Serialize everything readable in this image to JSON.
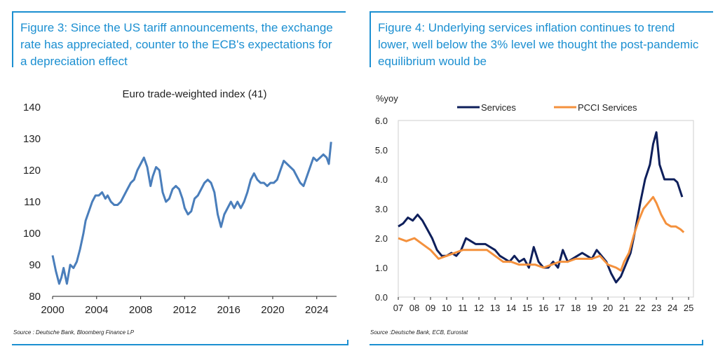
{
  "figures": [
    {
      "title": "Figure 3: Since the US tariff announcements, the exchange rate has appreciated, counter to the ECB's expectations for a depreciation effect",
      "source": "Source : Deutsche Bank, Bloomberg Finance LP"
    },
    {
      "title": "Figure 4: Underlying services inflation continues to trend lower, well below the 3% level we thought the post-pandemic equilibrium would be",
      "source": "Source :Deutsche Bank, ECB, Eurostat"
    }
  ],
  "colors": {
    "accent": "#1b8fd1",
    "series_left": "#4a7ebb",
    "services": "#0e1f5b",
    "pcci": "#f4913d"
  },
  "chart_data": [
    {
      "type": "line",
      "title": "Euro trade-weighted index (41)",
      "xlabel": "",
      "ylabel": "",
      "xlim": [
        2000,
        2025.8
      ],
      "ylim": [
        80,
        140
      ],
      "xticks": [
        2000,
        2004,
        2008,
        2012,
        2016,
        2020,
        2024
      ],
      "xtick_labels": [
        "2000",
        "2004",
        "2008",
        "2012",
        "2016",
        "2020",
        "2024"
      ],
      "yticks": [
        80,
        90,
        100,
        110,
        120,
        130,
        140
      ],
      "ytick_labels": [
        "80",
        "90",
        "100",
        "110",
        "120",
        "130",
        "140"
      ],
      "grid": false,
      "series": [
        {
          "name": "Euro trade-weighted index (41)",
          "x": [
            2000.0,
            2000.3,
            2000.6,
            2000.8,
            2001.0,
            2001.3,
            2001.6,
            2001.9,
            2002.2,
            2002.5,
            2002.8,
            2003.0,
            2003.3,
            2003.6,
            2003.9,
            2004.2,
            2004.5,
            2004.8,
            2005.0,
            2005.3,
            2005.6,
            2005.9,
            2006.2,
            2006.5,
            2006.8,
            2007.1,
            2007.4,
            2007.7,
            2008.0,
            2008.3,
            2008.6,
            2008.9,
            2009.1,
            2009.4,
            2009.7,
            2010.0,
            2010.3,
            2010.6,
            2010.9,
            2011.2,
            2011.5,
            2011.8,
            2012.0,
            2012.3,
            2012.6,
            2012.9,
            2013.2,
            2013.5,
            2013.8,
            2014.1,
            2014.4,
            2014.7,
            2015.0,
            2015.3,
            2015.6,
            2015.9,
            2016.2,
            2016.5,
            2016.8,
            2017.1,
            2017.4,
            2017.7,
            2018.0,
            2018.3,
            2018.6,
            2018.9,
            2019.2,
            2019.5,
            2019.8,
            2020.1,
            2020.4,
            2020.7,
            2021.0,
            2021.3,
            2021.6,
            2021.9,
            2022.2,
            2022.5,
            2022.8,
            2023.1,
            2023.4,
            2023.7,
            2024.0,
            2024.3,
            2024.6,
            2024.9,
            2025.1,
            2025.3
          ],
          "y": [
            93,
            88,
            84,
            86,
            89,
            84,
            90,
            89,
            91,
            95,
            100,
            104,
            107,
            110,
            112,
            112,
            113,
            111,
            112,
            110,
            109,
            109,
            110,
            112,
            114,
            116,
            117,
            120,
            122,
            124,
            121,
            115,
            118,
            121,
            120,
            113,
            110,
            111,
            114,
            115,
            114,
            111,
            108,
            106,
            107,
            111,
            112,
            114,
            116,
            117,
            116,
            113,
            106,
            102,
            106,
            108,
            110,
            108,
            110,
            108,
            110,
            113,
            117,
            119,
            117,
            116,
            116,
            115,
            116,
            116,
            117,
            120,
            123,
            122,
            121,
            120,
            118,
            116,
            115,
            118,
            121,
            124,
            123,
            124,
            125,
            124,
            122,
            129
          ]
        }
      ]
    },
    {
      "type": "line",
      "title": "",
      "xlabel": "",
      "ylabel": "%yoy",
      "xlim": [
        2007,
        2025.3
      ],
      "ylim": [
        0.0,
        6.0
      ],
      "xticks": [
        2007,
        2008,
        2009,
        2010,
        2011,
        2012,
        2013,
        2014,
        2015,
        2016,
        2017,
        2018,
        2019,
        2020,
        2021,
        2022,
        2023,
        2024,
        2025
      ],
      "xtick_labels": [
        "07",
        "08",
        "09",
        "10",
        "11",
        "12",
        "13",
        "14",
        "15",
        "16",
        "17",
        "18",
        "19",
        "20",
        "21",
        "22",
        "23",
        "24",
        "25"
      ],
      "yticks": [
        0.0,
        1.0,
        2.0,
        3.0,
        4.0,
        5.0,
        6.0
      ],
      "ytick_labels": [
        "0.0",
        "1.0",
        "2.0",
        "3.0",
        "4.0",
        "5.0",
        "6.0"
      ],
      "grid": false,
      "legend": "top",
      "series": [
        {
          "name": "Services",
          "x": [
            2007.0,
            2007.3,
            2007.6,
            2007.9,
            2008.2,
            2008.5,
            2008.8,
            2009.1,
            2009.4,
            2009.7,
            2010.0,
            2010.3,
            2010.6,
            2010.9,
            2011.2,
            2011.5,
            2011.8,
            2012.1,
            2012.4,
            2012.7,
            2013.0,
            2013.3,
            2013.6,
            2013.9,
            2014.2,
            2014.5,
            2014.8,
            2015.1,
            2015.4,
            2015.7,
            2016.0,
            2016.3,
            2016.6,
            2016.9,
            2017.2,
            2017.5,
            2017.8,
            2018.1,
            2018.4,
            2018.7,
            2019.0,
            2019.3,
            2019.6,
            2019.9,
            2020.2,
            2020.5,
            2020.8,
            2021.1,
            2021.4,
            2021.7,
            2022.0,
            2022.3,
            2022.6,
            2022.8,
            2023.0,
            2023.2,
            2023.5,
            2023.8,
            2024.1,
            2024.3,
            2024.6
          ],
          "y": [
            2.4,
            2.5,
            2.7,
            2.6,
            2.8,
            2.6,
            2.3,
            2.0,
            1.6,
            1.4,
            1.4,
            1.5,
            1.4,
            1.6,
            2.0,
            1.9,
            1.8,
            1.8,
            1.8,
            1.7,
            1.6,
            1.4,
            1.3,
            1.2,
            1.4,
            1.2,
            1.3,
            1.0,
            1.7,
            1.2,
            1.0,
            1.0,
            1.2,
            1.0,
            1.6,
            1.2,
            1.3,
            1.4,
            1.5,
            1.4,
            1.3,
            1.6,
            1.4,
            1.2,
            0.8,
            0.5,
            0.7,
            1.1,
            1.5,
            2.3,
            3.2,
            4.0,
            4.5,
            5.2,
            5.6,
            4.5,
            4.0,
            4.0,
            4.0,
            3.9,
            3.4
          ]
        },
        {
          "name": "PCCI Services",
          "x": [
            2007.0,
            2007.5,
            2008.0,
            2008.5,
            2009.0,
            2009.5,
            2010.0,
            2010.5,
            2011.0,
            2011.5,
            2012.0,
            2012.5,
            2013.0,
            2013.5,
            2014.0,
            2014.5,
            2015.0,
            2015.5,
            2016.0,
            2016.5,
            2017.0,
            2017.5,
            2018.0,
            2018.5,
            2019.0,
            2019.5,
            2020.0,
            2020.5,
            2020.8,
            2021.0,
            2021.3,
            2021.6,
            2021.9,
            2022.2,
            2022.5,
            2022.8,
            2023.0,
            2023.3,
            2023.6,
            2023.9,
            2024.2,
            2024.5,
            2024.7
          ],
          "y": [
            2.0,
            1.9,
            2.0,
            1.8,
            1.6,
            1.3,
            1.4,
            1.5,
            1.6,
            1.6,
            1.6,
            1.6,
            1.4,
            1.2,
            1.2,
            1.1,
            1.1,
            1.1,
            1.0,
            1.1,
            1.2,
            1.2,
            1.3,
            1.3,
            1.3,
            1.4,
            1.1,
            1.0,
            0.9,
            1.2,
            1.5,
            2.1,
            2.6,
            3.0,
            3.2,
            3.4,
            3.2,
            2.8,
            2.5,
            2.4,
            2.4,
            2.3,
            2.2
          ]
        }
      ]
    }
  ]
}
